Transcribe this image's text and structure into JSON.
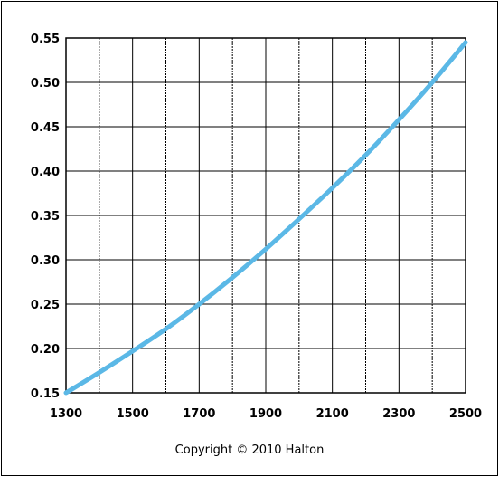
{
  "chart_data": {
    "type": "line",
    "xlim": [
      1300,
      2500
    ],
    "ylim": [
      0.15,
      0.55
    ],
    "x_tick_labels": [
      "1300",
      "1500",
      "1700",
      "1900",
      "2100",
      "2300",
      "2500"
    ],
    "y_tick_labels": [
      "0.15",
      "0.20",
      "0.25",
      "0.30",
      "0.35",
      "0.40",
      "0.45",
      "0.50",
      "0.55"
    ],
    "x_minor_ticks": [
      1400,
      1600,
      1800,
      2000,
      2200,
      2400
    ],
    "grid": true,
    "series": [
      {
        "color": "#5bb8e6",
        "x": [
          1300,
          1400,
          1500,
          1600,
          1700,
          1800,
          1900,
          2000,
          2100,
          2200,
          2300,
          2400,
          2500
        ],
        "y": [
          0.15,
          0.173,
          0.197,
          0.222,
          0.25,
          0.28,
          0.312,
          0.346,
          0.381,
          0.418,
          0.458,
          0.5,
          0.545
        ]
      }
    ]
  },
  "footer": {
    "copyright": "Copyright © 2010 Halton"
  }
}
